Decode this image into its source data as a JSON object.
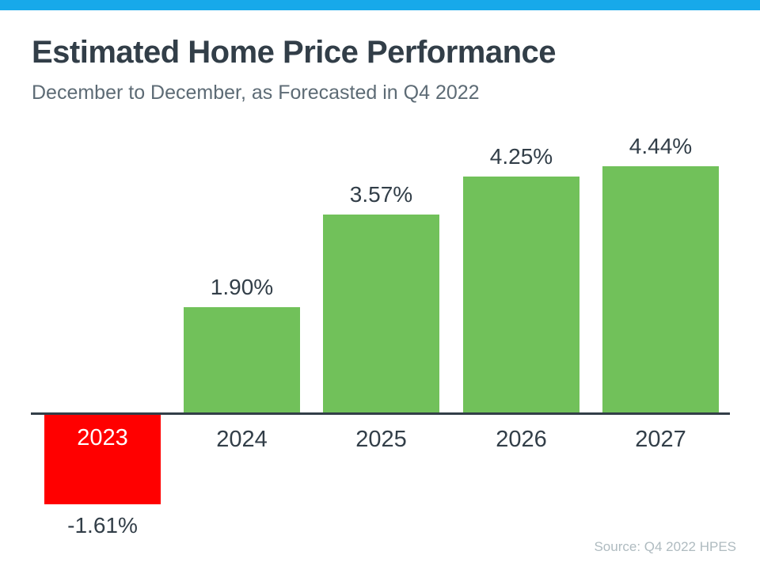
{
  "colors": {
    "accent_bar": "#17A9EA",
    "positive_bar": "#71C15A",
    "negative_bar": "#FF0000",
    "title_text": "#323E48",
    "subtitle_text": "#5D6B75",
    "label_text": "#323E48",
    "negative_category_text": "#FFFFFF",
    "axis": "#333E48",
    "source_text": "#AFBBC0"
  },
  "chart_data": {
    "type": "bar",
    "title": "Estimated Home Price Performance",
    "subtitle": "December to December, as Forecasted in Q4 2022",
    "categories": [
      "2023",
      "2024",
      "2025",
      "2026",
      "2027"
    ],
    "values": [
      -1.61,
      1.9,
      3.57,
      4.25,
      4.44
    ],
    "value_labels": [
      "-1.61%",
      "1.90%",
      "3.57%",
      "4.25%",
      "4.44%"
    ],
    "unit": "percent",
    "baseline": 0,
    "ylim": [
      -1.7,
      4.6
    ],
    "grid": false,
    "legend": "none",
    "source": "Source: Q4 2022 HPES"
  }
}
